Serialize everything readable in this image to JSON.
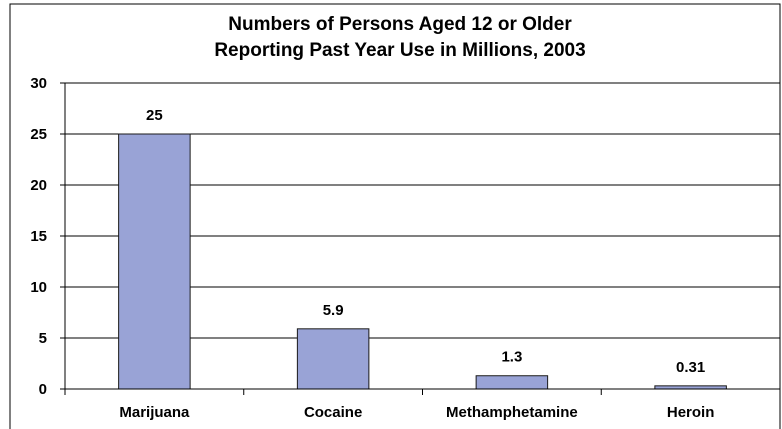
{
  "chart_data": {
    "type": "bar",
    "title_lines": [
      "Numbers of Persons Aged 12 or Older",
      "Reporting Past Year Use in Millions, 2003"
    ],
    "categories": [
      "Marijuana",
      "Cocaine",
      "Methamphetamine",
      "Heroin"
    ],
    "values": [
      25,
      5.9,
      1.3,
      0.31
    ],
    "data_labels": [
      "25",
      "5.9",
      "1.3",
      "0.31"
    ],
    "y_ticks": [
      "0",
      "5",
      "10",
      "15",
      "20",
      "25",
      "30"
    ],
    "ylim": [
      0,
      30
    ],
    "grid": true,
    "legend": "none",
    "colors": {
      "bar_fill": "#99a3d6",
      "bar_stroke": "#1a1a1a",
      "grid": "#000000",
      "frame": "#000000"
    }
  }
}
